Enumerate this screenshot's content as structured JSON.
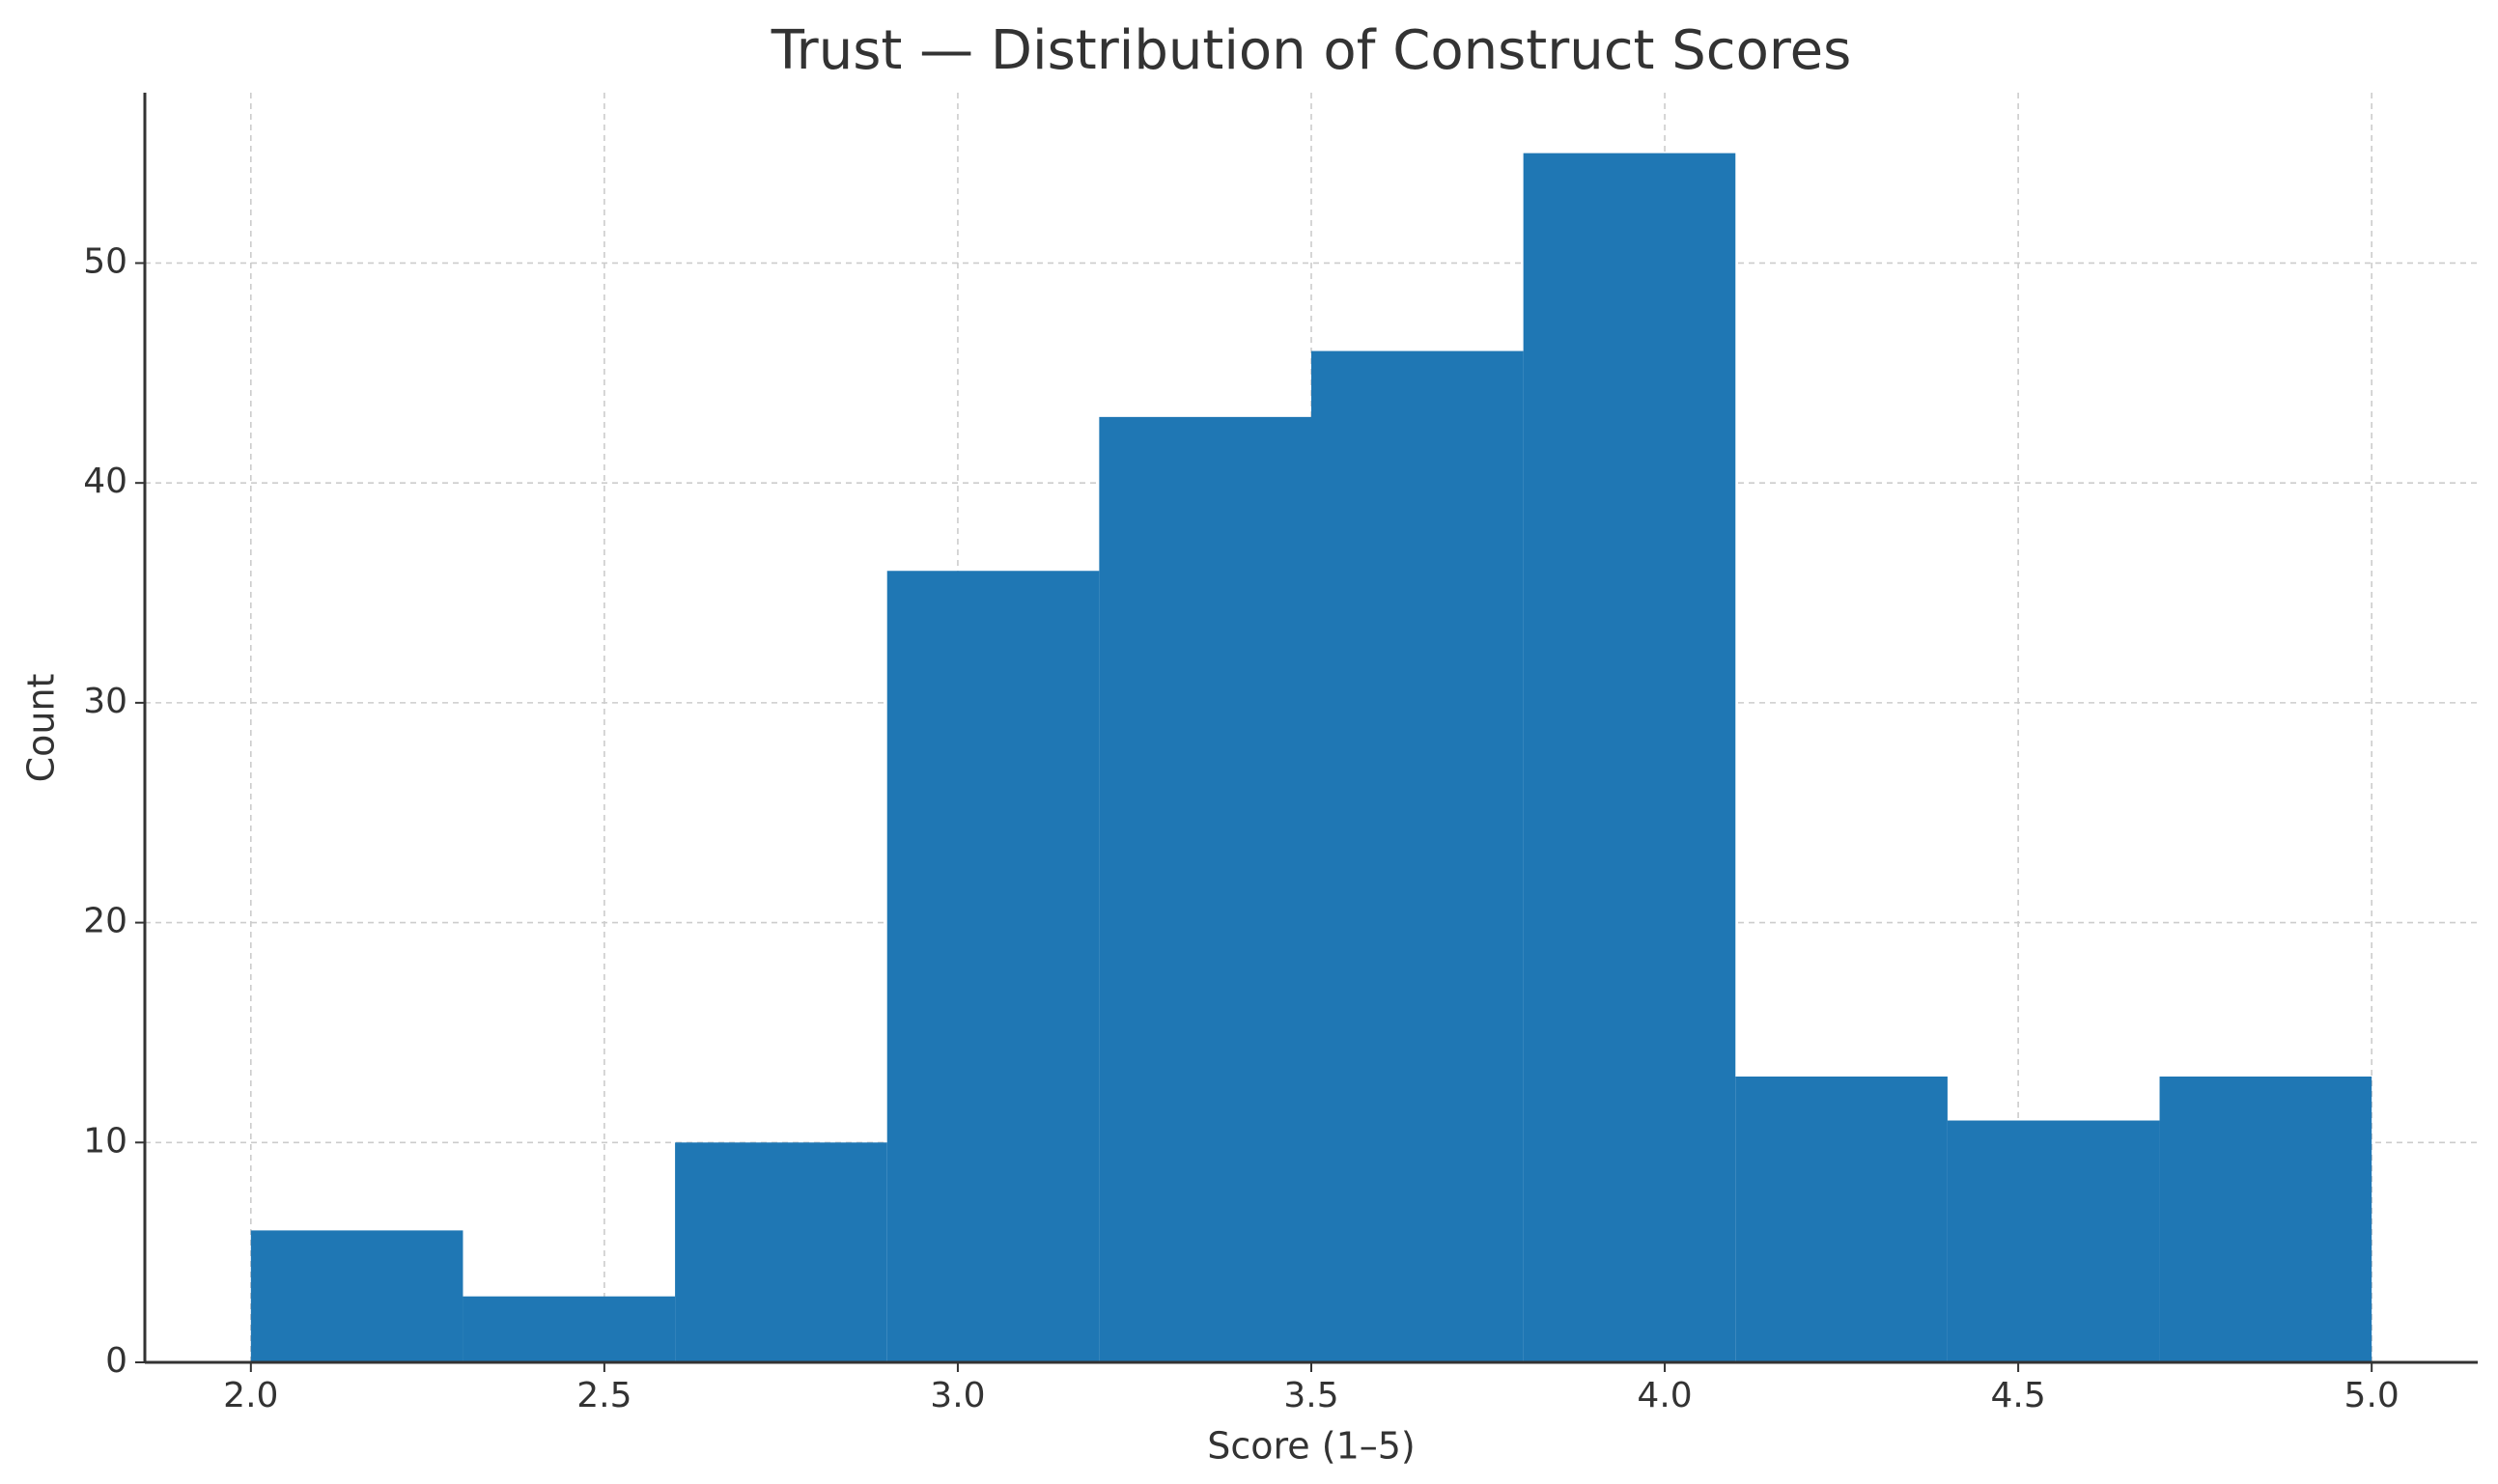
{
  "chart_data": {
    "type": "histogram",
    "title": "Trust — Distribution of Construct Scores",
    "x_label": "Score (1–5)",
    "y_label": "Count",
    "bins": [
      2.0,
      2.3,
      2.6,
      2.9,
      3.2,
      3.5,
      3.8,
      4.1,
      4.4,
      4.7,
      5.0
    ],
    "values": [
      6,
      3,
      10,
      36,
      43,
      46,
      55,
      13,
      11,
      13
    ],
    "color": "#1f77b4",
    "xlim": [
      1.85,
      5.15
    ],
    "ylim": [
      0,
      57.75
    ],
    "xticks": [
      {
        "value": 2,
        "label": "2.0"
      },
      {
        "value": 2.5,
        "label": "2.5"
      },
      {
        "value": 3,
        "label": "3.0"
      },
      {
        "value": 3.5,
        "label": "3.5"
      },
      {
        "value": 4,
        "label": "4.0"
      },
      {
        "value": 4.5,
        "label": "4.5"
      },
      {
        "value": 5,
        "label": "5.0"
      }
    ],
    "yticks": [
      0,
      10,
      20,
      30,
      40,
      50
    ],
    "grid": true
  }
}
